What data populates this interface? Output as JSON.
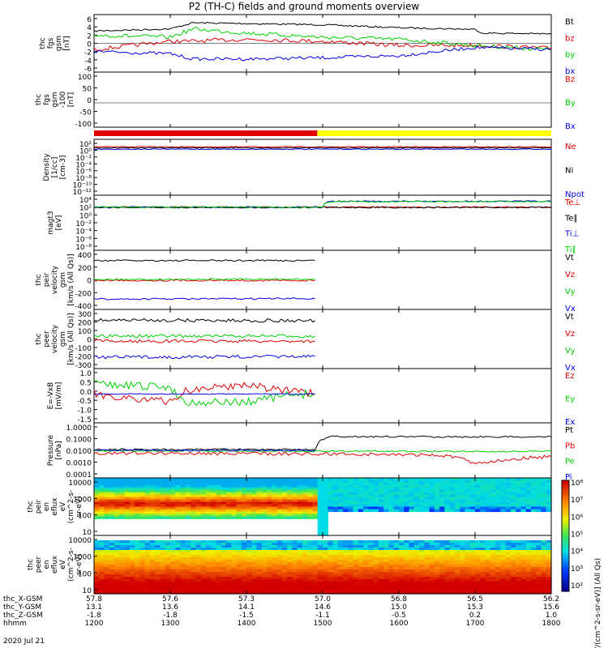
{
  "title": "P2 (TH-C) fields and ground moments overview",
  "date_label": "2020 Jul 21",
  "colors": {
    "black": "#000000",
    "red": "#e00000",
    "green": "#00d000",
    "blue": "#0000e0",
    "yellow": "#ffff00",
    "cyan": "#00e0e0"
  },
  "chart_data": [
    {
      "panel": "fgs_gsm",
      "type": "line",
      "ylabel": [
        "thc",
        "fgs",
        "gsm",
        "[nT]"
      ],
      "yticks": [
        "6",
        "4",
        "2",
        "0",
        "-2",
        "-4",
        "-6"
      ],
      "ylim": [
        -6,
        6
      ],
      "series": [
        {
          "name": "Bt",
          "color": "black",
          "x": [
            1200,
            1300,
            1330,
            1400,
            1500,
            1600,
            1700,
            1710,
            1800
          ],
          "values": [
            3,
            3.5,
            5,
            4.8,
            4.5,
            3.8,
            3.4,
            2.5,
            2.3
          ]
        },
        {
          "name": "bz",
          "color": "red",
          "x": [
            1200,
            1300,
            1330,
            1400,
            1500,
            1600,
            1700,
            1800
          ],
          "values": [
            -1.5,
            0.5,
            0.5,
            1,
            0.5,
            -0.5,
            -0.5,
            -1.2
          ]
        },
        {
          "name": "by",
          "color": "green",
          "x": [
            1200,
            1300,
            1330,
            1400,
            1500,
            1600,
            1700,
            1800
          ],
          "values": [
            2,
            1.5,
            3.5,
            2.5,
            1.5,
            1,
            -0.5,
            -1.5
          ]
        },
        {
          "name": "bx",
          "color": "blue",
          "x": [
            1200,
            1300,
            1330,
            1400,
            1500,
            1600,
            1700,
            1800
          ],
          "values": [
            -2,
            -2.5,
            -3.8,
            -3.8,
            -3.5,
            -3,
            -1,
            -1.5
          ]
        }
      ]
    },
    {
      "panel": "fgs_gsm_100",
      "type": "line",
      "ylabel": [
        "thc",
        "fgs",
        "gsm",
        "-100",
        "[nT]"
      ],
      "yticks": [
        "100",
        "50",
        "0",
        "-50",
        "-100"
      ],
      "ylim": [
        -120,
        100
      ],
      "series": [
        {
          "name": "Bz",
          "color": "red",
          "x": [],
          "values": []
        },
        {
          "name": "By",
          "color": "green",
          "x": [],
          "values": []
        },
        {
          "name": "Bx",
          "color": "blue",
          "x": [],
          "values": []
        }
      ]
    },
    {
      "panel": "density",
      "type": "line",
      "ylabel": [
        "Density",
        "[1/cc]",
        "[cm-3]"
      ],
      "yticks": [
        "10²",
        "10⁰",
        "10⁻²",
        "10⁻⁴",
        "10⁻⁶",
        "10⁻⁸",
        "10⁻¹⁰",
        "10⁻¹²"
      ],
      "series": [
        {
          "name": "Ne",
          "color": "red",
          "x": [
            1200,
            1800
          ],
          "values": [
            10,
            10
          ]
        },
        {
          "name": "Ni",
          "color": "black",
          "x": [
            1200,
            1800
          ],
          "values": [
            5,
            5
          ]
        },
        {
          "name": "Npot",
          "color": "blue",
          "x": [
            1200,
            1800
          ],
          "values": [
            2,
            2
          ]
        }
      ]
    },
    {
      "panel": "temperature",
      "type": "line",
      "ylabel": [
        "magt3",
        "[eV]"
      ],
      "yticks": [
        "10⁴",
        "10²",
        "10⁰",
        "10⁻²",
        "10⁻⁴",
        "10⁻⁶",
        "10⁻⁸"
      ],
      "series": [
        {
          "name": "Te⊥",
          "color": "red",
          "x": [
            1200,
            1800
          ],
          "values": [
            100,
            100
          ]
        },
        {
          "name": "Te∥",
          "color": "black",
          "x": [
            1200,
            1800
          ],
          "values": [
            80,
            80
          ]
        },
        {
          "name": "Ti⊥",
          "color": "blue",
          "x": [
            1200,
            1500,
            1510,
            1800
          ],
          "values": [
            100,
            100,
            3000,
            3000
          ]
        },
        {
          "name": "Ti∥",
          "color": "green",
          "x": [
            1200,
            1500,
            1510,
            1800
          ],
          "values": [
            100,
            100,
            2500,
            2500
          ]
        }
      ]
    },
    {
      "panel": "peir_velocity",
      "type": "line",
      "ylabel": [
        "thc",
        "peir",
        "velocity",
        "gsm",
        "[km/s (All Qs)]"
      ],
      "yticks": [
        "400",
        "200",
        "0",
        "-200",
        "-400"
      ],
      "ylim": [
        -450,
        450
      ],
      "series": [
        {
          "name": "Vt",
          "color": "black",
          "x": [
            1200,
            1490
          ],
          "values": [
            340,
            340
          ]
        },
        {
          "name": "Vz",
          "color": "red",
          "x": [
            1200,
            1490
          ],
          "values": [
            -10,
            -10
          ]
        },
        {
          "name": "Vy",
          "color": "green",
          "x": [
            1200,
            1490
          ],
          "values": [
            10,
            10
          ]
        },
        {
          "name": "Vx",
          "color": "blue",
          "x": [
            1200,
            1490
          ],
          "values": [
            -340,
            -330
          ]
        }
      ]
    },
    {
      "panel": "peer_velocity",
      "type": "line",
      "ylabel": [
        "thc",
        "peer",
        "velocity",
        "gsm",
        "[km/s (All Qs)]"
      ],
      "yticks": [
        "300",
        "200",
        "100",
        "0",
        "-100",
        "-200",
        "-300"
      ],
      "ylim": [
        -350,
        350
      ],
      "series": [
        {
          "name": "Vt",
          "color": "black",
          "x": [
            1200,
            1490
          ],
          "values": [
            260,
            250
          ]
        },
        {
          "name": "Vz",
          "color": "red",
          "x": [
            1200,
            1490
          ],
          "values": [
            -30,
            -30
          ]
        },
        {
          "name": "Vy",
          "color": "green",
          "x": [
            1200,
            1490
          ],
          "values": [
            40,
            40
          ]
        },
        {
          "name": "Vx",
          "color": "blue",
          "x": [
            1200,
            1490
          ],
          "values": [
            -250,
            -240
          ]
        }
      ]
    },
    {
      "panel": "e_field",
      "type": "line",
      "ylabel": [
        "E=-VxB",
        "[mV/m]"
      ],
      "yticks": [
        "1.0",
        "0.5",
        "0.0",
        "-0.5",
        "-1.0",
        "-1.5"
      ],
      "ylim": [
        -1.5,
        1.3
      ],
      "series": [
        {
          "name": "Ez",
          "color": "red",
          "x": [
            1200,
            1300,
            1320,
            1400,
            1450,
            1490
          ],
          "values": [
            0,
            -0.5,
            0.2,
            0.6,
            0.2,
            0
          ]
        },
        {
          "name": "Ey",
          "color": "green",
          "x": [
            1200,
            1300,
            1320,
            1400,
            1450,
            1490
          ],
          "values": [
            0.6,
            0.4,
            -0.5,
            -0.5,
            -0.1,
            0
          ]
        },
        {
          "name": "Ex",
          "color": "blue",
          "x": [
            1200,
            1490
          ],
          "values": [
            0,
            0
          ]
        }
      ]
    },
    {
      "panel": "pressure",
      "type": "line",
      "ylabel": [
        "Pressure",
        "[nPa]"
      ],
      "yticks": [
        "1.0000",
        "0.1000",
        "0.0100",
        "0.0010",
        "0.0001"
      ],
      "series": [
        {
          "name": "Pt",
          "color": "black",
          "x": [
            1200,
            1490,
            1510,
            1800
          ],
          "values": [
            0.012,
            0.012,
            0.15,
            0.14
          ]
        },
        {
          "name": "Pb",
          "color": "red",
          "x": [
            1200,
            1500,
            1650,
            1700,
            1800
          ],
          "values": [
            0.006,
            0.005,
            0.004,
            0.0007,
            0.003
          ]
        },
        {
          "name": "Pe",
          "color": "green",
          "x": [
            1200,
            1800
          ],
          "values": [
            0.009,
            0.008
          ]
        },
        {
          "name": "Pi",
          "color": "blue",
          "x": [
            1200,
            1490
          ],
          "values": [
            0.01,
            0.01
          ]
        }
      ]
    },
    {
      "panel": "peir_eflux",
      "type": "heatmap",
      "ylabel": [
        "thc",
        "peir",
        "en",
        "eflux",
        "eV",
        "(cm^2-s-",
        "sr-eV)"
      ],
      "yticks": [
        "10000",
        "1000",
        "100",
        "10"
      ]
    },
    {
      "panel": "peer_eflux",
      "type": "heatmap",
      "ylabel": [
        "thc",
        "peer",
        "en",
        "eflux",
        "eV",
        "(cm^2-s-",
        "sr-eV)"
      ],
      "yticks": [
        "10000",
        "1000",
        "100",
        "10"
      ],
      "colorbar": {
        "label": "[eV/(cm^2-s-sr-eV)] (All Qs)",
        "ticks": [
          "10⁸",
          "10⁷",
          "10⁶",
          "10⁵",
          "10⁴",
          "10³",
          "10²"
        ]
      }
    }
  ],
  "xaxis": {
    "row_labels": [
      "thc_X-GSM",
      "thc_Y-GSM",
      "thc_Z-GSM",
      "hhmm"
    ],
    "columns": [
      [
        "57.8",
        "13.1",
        "-1.8",
        "1200"
      ],
      [
        "57.6",
        "13.6",
        "-1.8",
        "1300"
      ],
      [
        "57.3",
        "14.1",
        "-1.5",
        "1400"
      ],
      [
        "57.0",
        "14.6",
        "-1.1",
        "1500"
      ],
      [
        "56.8",
        "15.0",
        "-0.5",
        "1600"
      ],
      [
        "56.5",
        "15.3",
        "0.2",
        "1700"
      ],
      [
        "56.2",
        "15.6",
        "1.0",
        "1800"
      ]
    ]
  }
}
